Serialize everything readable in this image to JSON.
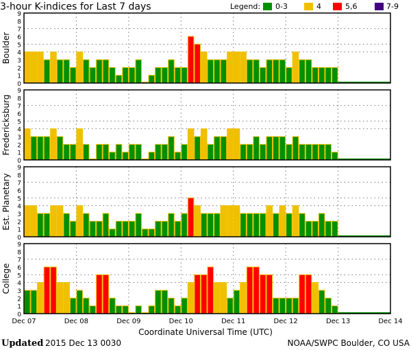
{
  "colors": {
    "quiet": "#009000",
    "active": "#f0c000",
    "storm": "#ff0000",
    "severe": "#400080"
  },
  "chart_data": {
    "type": "bar",
    "title": "3-hour K-indices for Last 7 days",
    "legend_title": "Legend:",
    "legend": [
      {
        "label": "0-3",
        "color": "#009000"
      },
      {
        "label": "4",
        "color": "#f0c000"
      },
      {
        "label": "5,6",
        "color": "#ff0000"
      },
      {
        "label": "7-9",
        "color": "#400080"
      }
    ],
    "legend_position": "top-right",
    "xlabel": "Coordinate Universal Time (UTC)",
    "x_ticks": [
      "Dec 07",
      "Dec 08",
      "Dec 09",
      "Dec 10",
      "Dec 11",
      "Dec 12",
      "Dec 13",
      "Dec 14"
    ],
    "y_ticks": [
      "0",
      "1",
      "2",
      "3",
      "4",
      "5",
      "6",
      "7",
      "8",
      "9"
    ],
    "ylim": [
      0,
      9
    ],
    "grid_levels": [
      4,
      5,
      7
    ],
    "bars_per_day": 8,
    "series": [
      {
        "name": "Boulder",
        "values": [
          4,
          4,
          4,
          3,
          4,
          3,
          3,
          2,
          4,
          3,
          2,
          3,
          3,
          2,
          1,
          2,
          2,
          3,
          0,
          1,
          2,
          2,
          3,
          2,
          2,
          6,
          5,
          4,
          3,
          3,
          3,
          4,
          4,
          4,
          3,
          3,
          2,
          3,
          3,
          3,
          2,
          4,
          3,
          3,
          2,
          2,
          2,
          2
        ]
      },
      {
        "name": "Fredericksburg",
        "values": [
          4,
          3,
          3,
          3,
          4,
          3,
          2,
          2,
          4,
          2,
          0,
          2,
          2,
          1,
          2,
          1,
          2,
          2,
          0,
          1,
          2,
          2,
          3,
          1,
          2,
          4,
          3,
          4,
          2,
          3,
          3,
          4,
          4,
          2,
          2,
          3,
          2,
          3,
          3,
          3,
          2,
          3,
          2,
          2,
          2,
          2,
          2,
          1
        ]
      },
      {
        "name": "Est. Planetary",
        "values": [
          4,
          4,
          3,
          3,
          4,
          4,
          3,
          2,
          4,
          3,
          2,
          2,
          3,
          1,
          2,
          2,
          2,
          3,
          1,
          1,
          2,
          2,
          3,
          2,
          3,
          5,
          4,
          3,
          3,
          3,
          4,
          4,
          4,
          3,
          3,
          3,
          3,
          4,
          3,
          4,
          3,
          4,
          3,
          2,
          2,
          3,
          2,
          2
        ]
      },
      {
        "name": "College",
        "values": [
          3,
          3,
          4,
          6,
          6,
          4,
          4,
          2,
          3,
          2,
          1,
          5,
          5,
          2,
          1,
          1,
          0,
          1,
          0,
          1,
          3,
          3,
          2,
          1,
          2,
          4,
          5,
          5,
          6,
          4,
          4,
          2,
          3,
          4,
          6,
          6,
          5,
          5,
          2,
          2,
          2,
          2,
          5,
          5,
          4,
          3,
          2,
          1
        ]
      }
    ]
  },
  "footer": {
    "updated_label": "Updated",
    "updated_value": "2015 Dec 13 0030",
    "source": "NOAA/SWPC Boulder, CO USA"
  }
}
